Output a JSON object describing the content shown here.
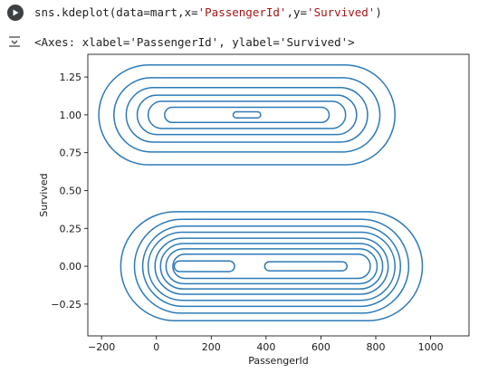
{
  "cell": {
    "code_prefix": "sns.kdeplot(data=mart,x=",
    "code_arg_x": "'PassengerId'",
    "code_mid": ",y=",
    "code_arg_y": "'Survived'",
    "code_suffix": ")",
    "output_text": "<Axes: xlabel='PassengerId', ylabel='Survived'>"
  },
  "colors": {
    "line": "#2d7ab8",
    "run_button": "#3c4043",
    "string": "#a31515"
  },
  "icons": {
    "run": "play-circle-icon",
    "output": "output-expand-icon"
  },
  "chart_data": {
    "type": "kde-contour",
    "xlabel": "PassengerId",
    "ylabel": "Survived",
    "xlim": [
      -250,
      1140
    ],
    "ylim": [
      -0.46,
      1.4
    ],
    "xticks": [
      -200,
      0,
      200,
      400,
      600,
      800,
      1000
    ],
    "xtick_labels": [
      "−200",
      "0",
      "200",
      "400",
      "600",
      "800",
      "1000"
    ],
    "yticks": [
      -0.25,
      0.0,
      0.25,
      0.5,
      0.75,
      1.0,
      1.25
    ],
    "ytick_labels": [
      "−0.25",
      "0.00",
      "0.25",
      "0.50",
      "0.75",
      "1.00",
      "1.25"
    ],
    "grid": false,
    "contour_groups": [
      {
        "name": "",
        "levels": [
          {
            "cx": 330,
            "cy": 1.0,
            "rx": 540,
            "ry": 0.33
          },
          {
            "cx": 330,
            "cy": 1.0,
            "rx": 485,
            "ry": 0.245
          },
          {
            "cx": 330,
            "cy": 1.0,
            "rx": 440,
            "ry": 0.18
          },
          {
            "cx": 330,
            "cy": 1.0,
            "rx": 400,
            "ry": 0.13
          },
          {
            "cx": 330,
            "cy": 1.0,
            "rx": 360,
            "ry": 0.09
          },
          {
            "cx": 330,
            "cy": 1.0,
            "rx": 300,
            "ry": 0.05
          },
          {
            "cx": 330,
            "cy": 1.0,
            "rx": 50,
            "ry": 0.02
          }
        ]
      },
      {
        "name": "",
        "levels": [
          {
            "cx": 420,
            "cy": 0.0,
            "rx": 550,
            "ry": 0.36
          },
          {
            "cx": 420,
            "cy": 0.0,
            "rx": 500,
            "ry": 0.31
          },
          {
            "cx": 420,
            "cy": 0.0,
            "rx": 470,
            "ry": 0.265
          },
          {
            "cx": 420,
            "cy": 0.0,
            "rx": 450,
            "ry": 0.225
          },
          {
            "cx": 420,
            "cy": 0.0,
            "rx": 425,
            "ry": 0.185
          },
          {
            "cx": 420,
            "cy": 0.0,
            "rx": 405,
            "ry": 0.15
          },
          {
            "cx": 420,
            "cy": 0.0,
            "rx": 385,
            "ry": 0.115
          },
          {
            "cx": 420,
            "cy": 0.0,
            "rx": 360,
            "ry": 0.08
          },
          {
            "cx": 175,
            "cy": 0.0,
            "rx": 110,
            "ry": 0.035
          },
          {
            "cx": 545,
            "cy": 0.0,
            "rx": 150,
            "ry": 0.03
          }
        ]
      }
    ]
  }
}
